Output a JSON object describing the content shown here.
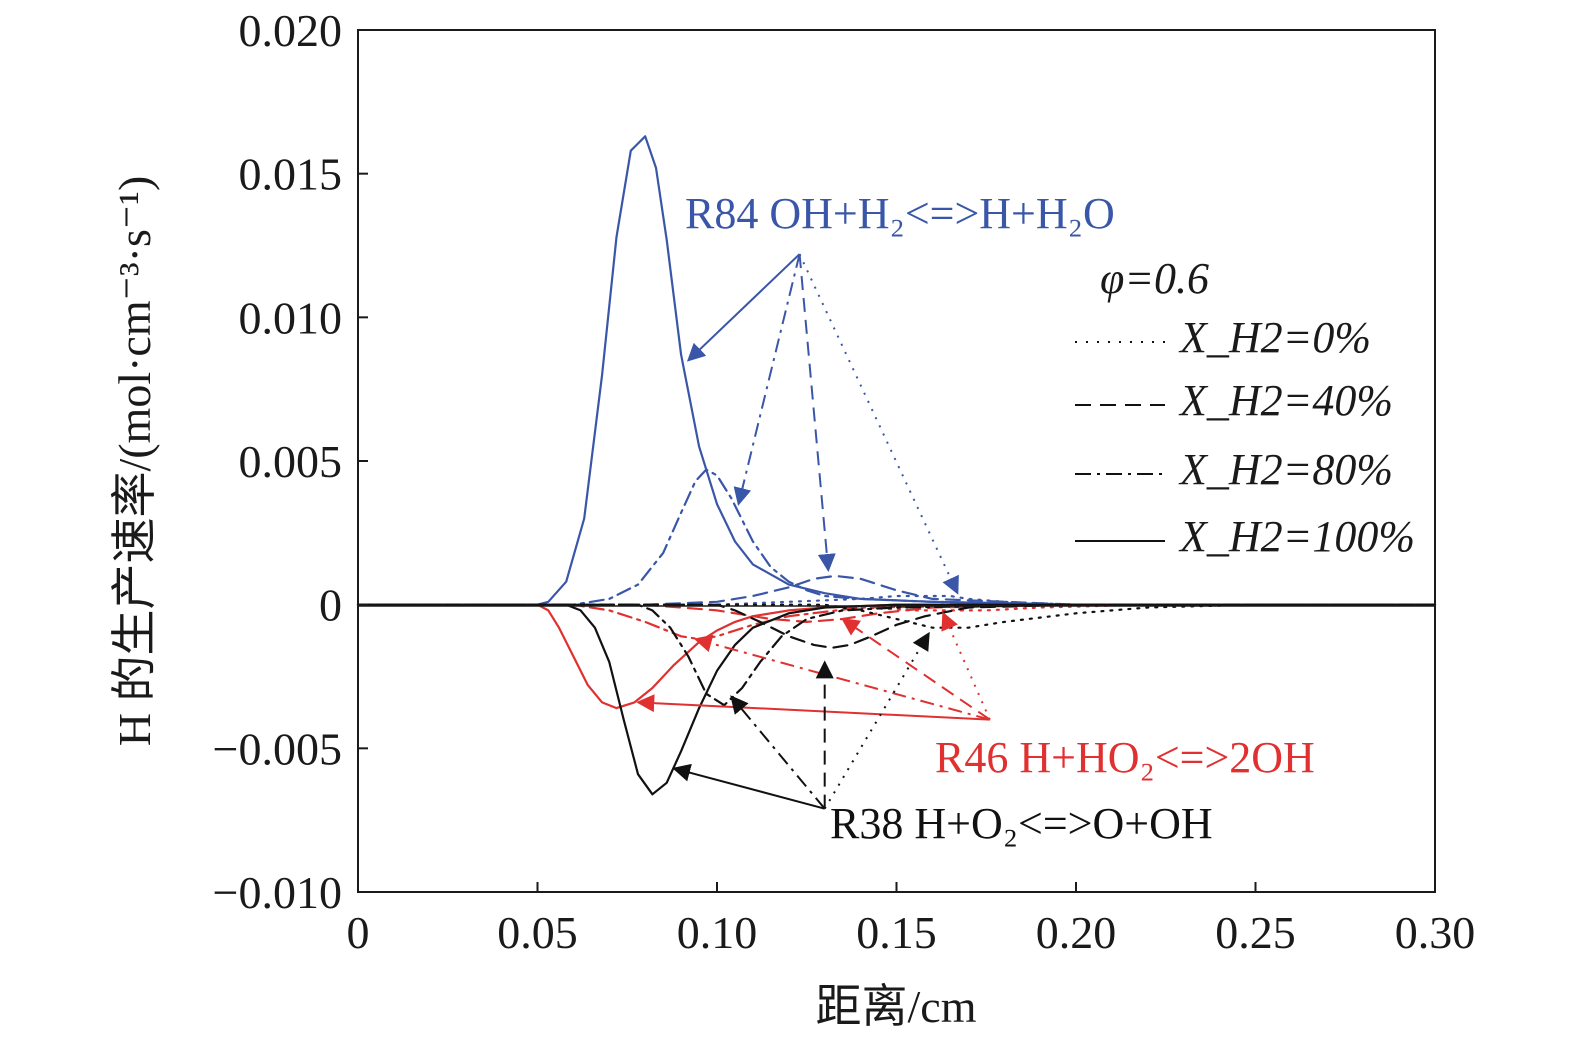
{
  "chart_data": {
    "type": "line",
    "title": "",
    "xlabel": "距离/cm",
    "ylabel": "H 的生产速率/(mol·cm⁻³·s⁻¹)",
    "xlim": [
      0,
      0.3
    ],
    "ylim": [
      -0.01,
      0.02
    ],
    "x_ticks": [
      "0",
      "0.05",
      "0.10",
      "0.15",
      "0.20",
      "0.25",
      "0.30"
    ],
    "y_ticks": [
      "−0.010",
      "−0.005",
      "0",
      "0.005",
      "0.010",
      "0.015",
      "0.020"
    ],
    "grid": false,
    "legend": {
      "title": "φ=0.6",
      "position": "top-right",
      "entries": [
        {
          "label": "X_H2=0%",
          "dash": "dotted"
        },
        {
          "label": "X_H2=40%",
          "dash": "dashed"
        },
        {
          "label": "X_H2=80%",
          "dash": "dashdot"
        },
        {
          "label": "X_H2=100%",
          "dash": "solid"
        }
      ]
    },
    "colors": {
      "R84": "#3a56a8",
      "R46": "#e03030",
      "R38": "#111111"
    },
    "annotations": [
      {
        "text": "R84 OH+H₂<=>H+H₂O",
        "reaction": "R84"
      },
      {
        "text": "R46 H+HO₂<=>2OH",
        "reaction": "R46"
      },
      {
        "text": "R38 H+O₂<=>O+OH",
        "reaction": "R38"
      }
    ],
    "series": [
      {
        "reaction": "R84",
        "color": "#3a56a8",
        "dash": "solid",
        "case": "100%",
        "x": [
          0,
          0.05,
          0.053,
          0.058,
          0.063,
          0.068,
          0.072,
          0.076,
          0.08,
          0.083,
          0.086,
          0.09,
          0.095,
          0.1,
          0.105,
          0.11,
          0.12,
          0.13,
          0.14,
          0.16,
          0.2,
          0.3
        ],
        "y": [
          0,
          0,
          0.0001,
          0.0008,
          0.003,
          0.008,
          0.0128,
          0.0158,
          0.0163,
          0.0152,
          0.0127,
          0.0087,
          0.0055,
          0.0035,
          0.0022,
          0.0014,
          0.0007,
          0.0004,
          0.0002,
          0.0001,
          0,
          0
        ]
      },
      {
        "reaction": "R84",
        "color": "#3a56a8",
        "dash": "dashdot",
        "case": "80%",
        "x": [
          0,
          0.06,
          0.07,
          0.078,
          0.085,
          0.09,
          0.094,
          0.097,
          0.1,
          0.104,
          0.11,
          0.115,
          0.12,
          0.125,
          0.13,
          0.14,
          0.16,
          0.2,
          0.3
        ],
        "y": [
          0,
          0,
          0.0002,
          0.0007,
          0.0018,
          0.0032,
          0.0043,
          0.0047,
          0.0045,
          0.0037,
          0.0022,
          0.0013,
          0.0008,
          0.0005,
          0.0003,
          0.0002,
          0.0001,
          0,
          0
        ]
      },
      {
        "reaction": "R84",
        "color": "#3a56a8",
        "dash": "dashed",
        "case": "40%",
        "x": [
          0,
          0.08,
          0.1,
          0.11,
          0.12,
          0.127,
          0.133,
          0.14,
          0.15,
          0.16,
          0.18,
          0.2,
          0.3
        ],
        "y": [
          0,
          0,
          0.0001,
          0.0003,
          0.0006,
          0.0009,
          0.001,
          0.0009,
          0.0005,
          0.0002,
          0.0001,
          0,
          0
        ]
      },
      {
        "reaction": "R84",
        "color": "#3a56a8",
        "dash": "dotted",
        "case": "0%",
        "x": [
          0,
          0.1,
          0.12,
          0.14,
          0.15,
          0.16,
          0.165,
          0.17,
          0.18,
          0.2,
          0.3
        ],
        "y": [
          0,
          0,
          0.0001,
          0.0002,
          0.0003,
          0.0003,
          0.0003,
          0.0002,
          0.0001,
          0,
          0
        ]
      },
      {
        "reaction": "R46",
        "color": "#e03030",
        "dash": "solid",
        "case": "100%",
        "x": [
          0,
          0.05,
          0.053,
          0.056,
          0.06,
          0.064,
          0.068,
          0.072,
          0.077,
          0.082,
          0.088,
          0.095,
          0.1,
          0.105,
          0.11,
          0.12,
          0.13,
          0.15,
          0.2,
          0.3
        ],
        "y": [
          0,
          0,
          -0.0002,
          -0.0008,
          -0.0018,
          -0.0028,
          -0.0034,
          -0.0036,
          -0.0034,
          -0.0029,
          -0.0021,
          -0.0013,
          -0.0009,
          -0.0006,
          -0.0004,
          -0.0002,
          -0.0001,
          0,
          0,
          0
        ]
      },
      {
        "reaction": "R46",
        "color": "#e03030",
        "dash": "dashdot",
        "case": "80%",
        "x": [
          0,
          0.06,
          0.07,
          0.08,
          0.09,
          0.095,
          0.1,
          0.11,
          0.12,
          0.14,
          0.2,
          0.3
        ],
        "y": [
          0,
          0,
          -0.0002,
          -0.0006,
          -0.0011,
          -0.0012,
          -0.0011,
          -0.0007,
          -0.0004,
          -0.0001,
          0,
          0
        ]
      },
      {
        "reaction": "R46",
        "color": "#e03030",
        "dash": "dashed",
        "case": "40%",
        "x": [
          0,
          0.08,
          0.1,
          0.115,
          0.125,
          0.135,
          0.145,
          0.16,
          0.2,
          0.3
        ],
        "y": [
          0,
          0,
          -0.0002,
          -0.0005,
          -0.0006,
          -0.0005,
          -0.0003,
          -0.0001,
          0,
          0
        ]
      },
      {
        "reaction": "R46",
        "color": "#e03030",
        "dash": "dotted",
        "case": "0%",
        "x": [
          0,
          0.12,
          0.14,
          0.155,
          0.165,
          0.175,
          0.19,
          0.22,
          0.3
        ],
        "y": [
          0,
          0,
          -0.0001,
          -0.0002,
          -0.0002,
          -0.0002,
          -0.0001,
          0,
          0
        ]
      },
      {
        "reaction": "R38",
        "color": "#111111",
        "dash": "solid",
        "case": "100%",
        "x": [
          0,
          0.058,
          0.062,
          0.066,
          0.07,
          0.074,
          0.078,
          0.082,
          0.086,
          0.09,
          0.095,
          0.1,
          0.105,
          0.11,
          0.12,
          0.13,
          0.15,
          0.2,
          0.3
        ],
        "y": [
          0,
          0,
          -0.0002,
          -0.0008,
          -0.002,
          -0.004,
          -0.0059,
          -0.0066,
          -0.0062,
          -0.0051,
          -0.0036,
          -0.0023,
          -0.0014,
          -0.0008,
          -0.0003,
          -0.0001,
          0,
          0,
          0
        ]
      },
      {
        "reaction": "R38",
        "color": "#111111",
        "dash": "dashdot",
        "case": "80%",
        "x": [
          0,
          0.078,
          0.082,
          0.087,
          0.092,
          0.097,
          0.102,
          0.107,
          0.112,
          0.118,
          0.125,
          0.135,
          0.15,
          0.2,
          0.3
        ],
        "y": [
          0,
          0,
          -0.0002,
          -0.0008,
          -0.0018,
          -0.0031,
          -0.0035,
          -0.0029,
          -0.002,
          -0.0011,
          -0.0005,
          -0.0002,
          -0.0001,
          0,
          0
        ]
      },
      {
        "reaction": "R38",
        "color": "#111111",
        "dash": "dashed",
        "case": "40%",
        "x": [
          0,
          0.1,
          0.105,
          0.112,
          0.12,
          0.127,
          0.132,
          0.137,
          0.143,
          0.15,
          0.158,
          0.17,
          0.2,
          0.3
        ],
        "y": [
          0,
          0,
          -0.0002,
          -0.0006,
          -0.0011,
          -0.0014,
          -0.0015,
          -0.0014,
          -0.0011,
          -0.0007,
          -0.0004,
          -0.0001,
          0,
          0
        ]
      },
      {
        "reaction": "R38",
        "color": "#111111",
        "dash": "dotted",
        "case": "0%",
        "x": [
          0,
          0.13,
          0.14,
          0.15,
          0.16,
          0.17,
          0.18,
          0.2,
          0.22,
          0.25,
          0.27,
          0.3
        ],
        "y": [
          0,
          0,
          -0.0002,
          -0.0005,
          -0.0008,
          -0.0008,
          -0.0006,
          -0.0003,
          -0.0001,
          0,
          0,
          0
        ]
      }
    ]
  }
}
